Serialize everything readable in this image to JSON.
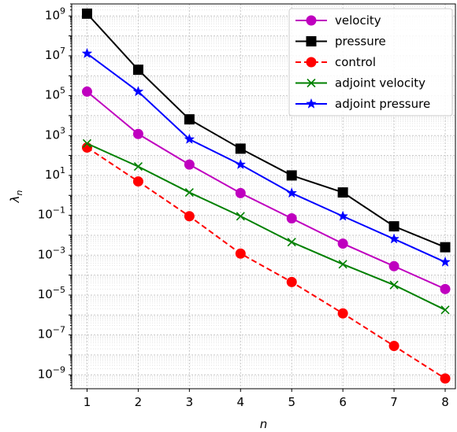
{
  "chart_data": {
    "type": "line",
    "title": "",
    "xlabel": "n",
    "ylabel": "λ_n",
    "y_scale": "log",
    "x": [
      1,
      2,
      3,
      4,
      5,
      6,
      7,
      8
    ],
    "xlim": [
      0.7,
      8.2
    ],
    "ylim": [
      2e-10,
      4000000000.0
    ],
    "x_ticks": [
      "1",
      "2",
      "3",
      "4",
      "5",
      "6",
      "7",
      "8"
    ],
    "y_ticks": [
      {
        "base": "10",
        "exp": "9",
        "value": 1000000000.0
      },
      {
        "base": "10",
        "exp": "7",
        "value": 10000000.0
      },
      {
        "base": "10",
        "exp": "5",
        "value": 100000.0
      },
      {
        "base": "10",
        "exp": "3",
        "value": 1000.0
      },
      {
        "base": "10",
        "exp": "1",
        "value": 10.0
      },
      {
        "base": "10",
        "exp": "−1",
        "value": 0.1
      },
      {
        "base": "10",
        "exp": "−3",
        "value": 0.001
      },
      {
        "base": "10",
        "exp": "−5",
        "value": 1e-05
      },
      {
        "base": "10",
        "exp": "−7",
        "value": 1e-07
      },
      {
        "base": "10",
        "exp": "−9",
        "value": 1e-09
      }
    ],
    "grid": true,
    "legend_position": "top-right",
    "series": [
      {
        "name": "velocity",
        "color": "#bf00bf",
        "marker": "circle",
        "dash": "solid",
        "values": [
          160000.0,
          1200.0,
          35.0,
          1.3,
          0.07,
          0.0038,
          0.00028,
          2e-05
        ]
      },
      {
        "name": "pressure",
        "color": "#000000",
        "marker": "square",
        "dash": "solid",
        "values": [
          1300000000.0,
          2000000.0,
          6500.0,
          220.0,
          10.0,
          1.4,
          0.028,
          0.0025
        ]
      },
      {
        "name": "control",
        "color": "#ff0000",
        "marker": "circle",
        "dash": "dashed",
        "values": [
          250.0,
          5.0,
          0.09,
          0.0012,
          4.5e-05,
          1.2e-06,
          2.8e-08,
          6.5e-10
        ]
      },
      {
        "name": "adjoint velocity",
        "color": "#008000",
        "marker": "x",
        "dash": "solid",
        "values": [
          400.0,
          28.0,
          1.4,
          0.09,
          0.0045,
          0.00035,
          3.2e-05,
          1.8e-06
        ]
      },
      {
        "name": "adjoint pressure",
        "color": "#0000ff",
        "marker": "star",
        "dash": "solid",
        "values": [
          13000000.0,
          160000.0,
          650.0,
          35.0,
          1.3,
          0.09,
          0.0065,
          0.00045
        ]
      }
    ]
  }
}
